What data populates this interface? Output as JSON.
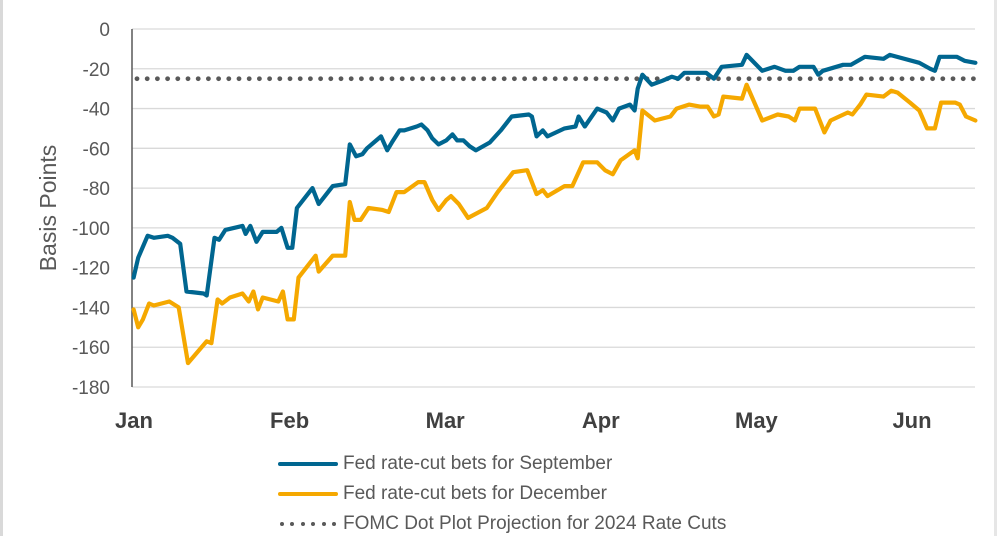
{
  "chart_data": {
    "type": "line",
    "title": "",
    "xlabel": "",
    "ylabel": "Basis Points",
    "ylim": [
      -180,
      0
    ],
    "yticks": [
      0,
      -20,
      -40,
      -60,
      -80,
      -100,
      -120,
      -140,
      -160,
      -180
    ],
    "ytick_labels": [
      "0",
      "-20",
      "-40",
      "-60",
      "-80",
      "-100",
      "-120",
      "-140",
      "-160",
      "-180"
    ],
    "x_unit": "months since Jan 1",
    "xlim": [
      0,
      5.42
    ],
    "xticks": [
      0,
      1,
      2,
      3,
      4,
      5
    ],
    "xtick_labels": [
      "Jan",
      "Feb",
      "Mar",
      "Apr",
      "May",
      "Jun"
    ],
    "grid": true,
    "legend_position": "bottom",
    "series": [
      {
        "name": "Fed rate-cut bets for September",
        "color": "#006690",
        "style": "solid",
        "points": [
          [
            0.01,
            -125
          ],
          [
            0.04,
            -115
          ],
          [
            0.1,
            -104
          ],
          [
            0.14,
            -105
          ],
          [
            0.23,
            -104
          ],
          [
            0.26,
            -105
          ],
          [
            0.31,
            -108
          ],
          [
            0.35,
            -132
          ],
          [
            0.46,
            -133
          ],
          [
            0.48,
            -134
          ],
          [
            0.53,
            -105
          ],
          [
            0.56,
            -106
          ],
          [
            0.6,
            -101
          ],
          [
            0.71,
            -99
          ],
          [
            0.73,
            -103
          ],
          [
            0.76,
            -99
          ],
          [
            0.8,
            -107
          ],
          [
            0.84,
            -102
          ],
          [
            0.93,
            -102
          ],
          [
            0.96,
            -100
          ],
          [
            1.0,
            -110
          ],
          [
            1.03,
            -110
          ],
          [
            1.06,
            -90
          ],
          [
            1.16,
            -80
          ],
          [
            1.2,
            -88
          ],
          [
            1.27,
            -81
          ],
          [
            1.29,
            -79
          ],
          [
            1.37,
            -78
          ],
          [
            1.4,
            -58
          ],
          [
            1.44,
            -64
          ],
          [
            1.48,
            -63
          ],
          [
            1.51,
            -60
          ],
          [
            1.57,
            -56
          ],
          [
            1.6,
            -54
          ],
          [
            1.64,
            -61
          ],
          [
            1.67,
            -57
          ],
          [
            1.72,
            -51
          ],
          [
            1.75,
            -51
          ],
          [
            1.83,
            -49
          ],
          [
            1.86,
            -48
          ],
          [
            1.9,
            -51
          ],
          [
            1.93,
            -55
          ],
          [
            1.97,
            -58
          ],
          [
            2.02,
            -56
          ],
          [
            2.06,
            -53
          ],
          [
            2.09,
            -56
          ],
          [
            2.13,
            -56
          ],
          [
            2.17,
            -59
          ],
          [
            2.21,
            -61
          ],
          [
            2.3,
            -57
          ],
          [
            2.37,
            -51
          ],
          [
            2.44,
            -44
          ],
          [
            2.55,
            -43
          ],
          [
            2.57,
            -44
          ],
          [
            2.6,
            -54
          ],
          [
            2.64,
            -51
          ],
          [
            2.67,
            -54
          ],
          [
            2.78,
            -50
          ],
          [
            2.85,
            -49
          ],
          [
            2.87,
            -44
          ],
          [
            2.91,
            -49
          ],
          [
            2.99,
            -40
          ],
          [
            3.05,
            -42
          ],
          [
            3.09,
            -46
          ],
          [
            3.13,
            -40
          ],
          [
            3.2,
            -38
          ],
          [
            3.23,
            -41
          ],
          [
            3.25,
            -30
          ],
          [
            3.28,
            -23
          ],
          [
            3.34,
            -28
          ],
          [
            3.41,
            -26
          ],
          [
            3.47,
            -24
          ],
          [
            3.51,
            -25
          ],
          [
            3.55,
            -22
          ],
          [
            3.69,
            -22
          ],
          [
            3.74,
            -25
          ],
          [
            3.79,
            -19
          ],
          [
            3.92,
            -18
          ],
          [
            3.95,
            -13
          ],
          [
            4.05,
            -21
          ],
          [
            4.13,
            -19
          ],
          [
            4.2,
            -21
          ],
          [
            4.25,
            -21
          ],
          [
            4.29,
            -19
          ],
          [
            4.38,
            -19
          ],
          [
            4.41,
            -23
          ],
          [
            4.44,
            -21
          ],
          [
            4.57,
            -18
          ],
          [
            4.62,
            -18
          ],
          [
            4.71,
            -14
          ],
          [
            4.83,
            -15
          ],
          [
            4.87,
            -13
          ],
          [
            5.06,
            -17
          ],
          [
            5.13,
            -20
          ],
          [
            5.16,
            -21
          ],
          [
            5.19,
            -14
          ],
          [
            5.3,
            -14
          ],
          [
            5.35,
            -16
          ],
          [
            5.42,
            -17
          ]
        ]
      },
      {
        "name": "Fed rate-cut bets for December",
        "color": "#F5A800",
        "style": "solid",
        "points": [
          [
            0.01,
            -141
          ],
          [
            0.04,
            -150
          ],
          [
            0.07,
            -146
          ],
          [
            0.11,
            -138
          ],
          [
            0.14,
            -139
          ],
          [
            0.24,
            -137
          ],
          [
            0.3,
            -140
          ],
          [
            0.36,
            -168
          ],
          [
            0.48,
            -157
          ],
          [
            0.51,
            -158
          ],
          [
            0.55,
            -136
          ],
          [
            0.58,
            -138
          ],
          [
            0.63,
            -135
          ],
          [
            0.71,
            -133
          ],
          [
            0.75,
            -137
          ],
          [
            0.78,
            -132
          ],
          [
            0.81,
            -141
          ],
          [
            0.84,
            -135
          ],
          [
            0.94,
            -137
          ],
          [
            0.97,
            -132
          ],
          [
            1.0,
            -146
          ],
          [
            1.04,
            -146
          ],
          [
            1.07,
            -125
          ],
          [
            1.18,
            -114
          ],
          [
            1.2,
            -122
          ],
          [
            1.29,
            -114
          ],
          [
            1.37,
            -114
          ],
          [
            1.4,
            -87
          ],
          [
            1.43,
            -96
          ],
          [
            1.47,
            -96
          ],
          [
            1.52,
            -90
          ],
          [
            1.61,
            -91
          ],
          [
            1.65,
            -92
          ],
          [
            1.7,
            -82
          ],
          [
            1.75,
            -82
          ],
          [
            1.84,
            -77
          ],
          [
            1.88,
            -77
          ],
          [
            1.93,
            -86
          ],
          [
            1.97,
            -91
          ],
          [
            2.02,
            -86
          ],
          [
            2.05,
            -84
          ],
          [
            2.1,
            -88
          ],
          [
            2.16,
            -95
          ],
          [
            2.28,
            -90
          ],
          [
            2.35,
            -82
          ],
          [
            2.41,
            -76
          ],
          [
            2.45,
            -72
          ],
          [
            2.54,
            -71
          ],
          [
            2.6,
            -83
          ],
          [
            2.64,
            -81
          ],
          [
            2.67,
            -84
          ],
          [
            2.78,
            -79
          ],
          [
            2.83,
            -79
          ],
          [
            2.9,
            -67
          ],
          [
            2.99,
            -67
          ],
          [
            3.04,
            -71
          ],
          [
            3.09,
            -73
          ],
          [
            3.14,
            -66
          ],
          [
            3.23,
            -61
          ],
          [
            3.25,
            -65
          ],
          [
            3.28,
            -41
          ],
          [
            3.36,
            -46
          ],
          [
            3.46,
            -44
          ],
          [
            3.5,
            -40
          ],
          [
            3.58,
            -38
          ],
          [
            3.65,
            -39
          ],
          [
            3.7,
            -39
          ],
          [
            3.74,
            -44
          ],
          [
            3.77,
            -43
          ],
          [
            3.8,
            -34
          ],
          [
            3.92,
            -35
          ],
          [
            3.95,
            -28
          ],
          [
            4.05,
            -46
          ],
          [
            4.15,
            -43
          ],
          [
            4.22,
            -44
          ],
          [
            4.26,
            -46
          ],
          [
            4.29,
            -40
          ],
          [
            4.39,
            -40
          ],
          [
            4.45,
            -52
          ],
          [
            4.49,
            -46
          ],
          [
            4.6,
            -42
          ],
          [
            4.63,
            -43
          ],
          [
            4.68,
            -38
          ],
          [
            4.72,
            -33
          ],
          [
            4.83,
            -34
          ],
          [
            4.88,
            -31
          ],
          [
            4.92,
            -32
          ],
          [
            5.0,
            -37
          ],
          [
            5.06,
            -41
          ],
          [
            5.11,
            -50
          ],
          [
            5.16,
            -50
          ],
          [
            5.2,
            -37
          ],
          [
            5.29,
            -37
          ],
          [
            5.32,
            -38
          ],
          [
            5.36,
            -44
          ],
          [
            5.42,
            -46
          ]
        ]
      },
      {
        "name": "FOMC Dot Plot Projection for 2024 Rate Cuts",
        "color": "#595959",
        "style": "dotted",
        "points": [
          [
            0,
            -25
          ],
          [
            5.42,
            -25
          ]
        ]
      }
    ]
  }
}
